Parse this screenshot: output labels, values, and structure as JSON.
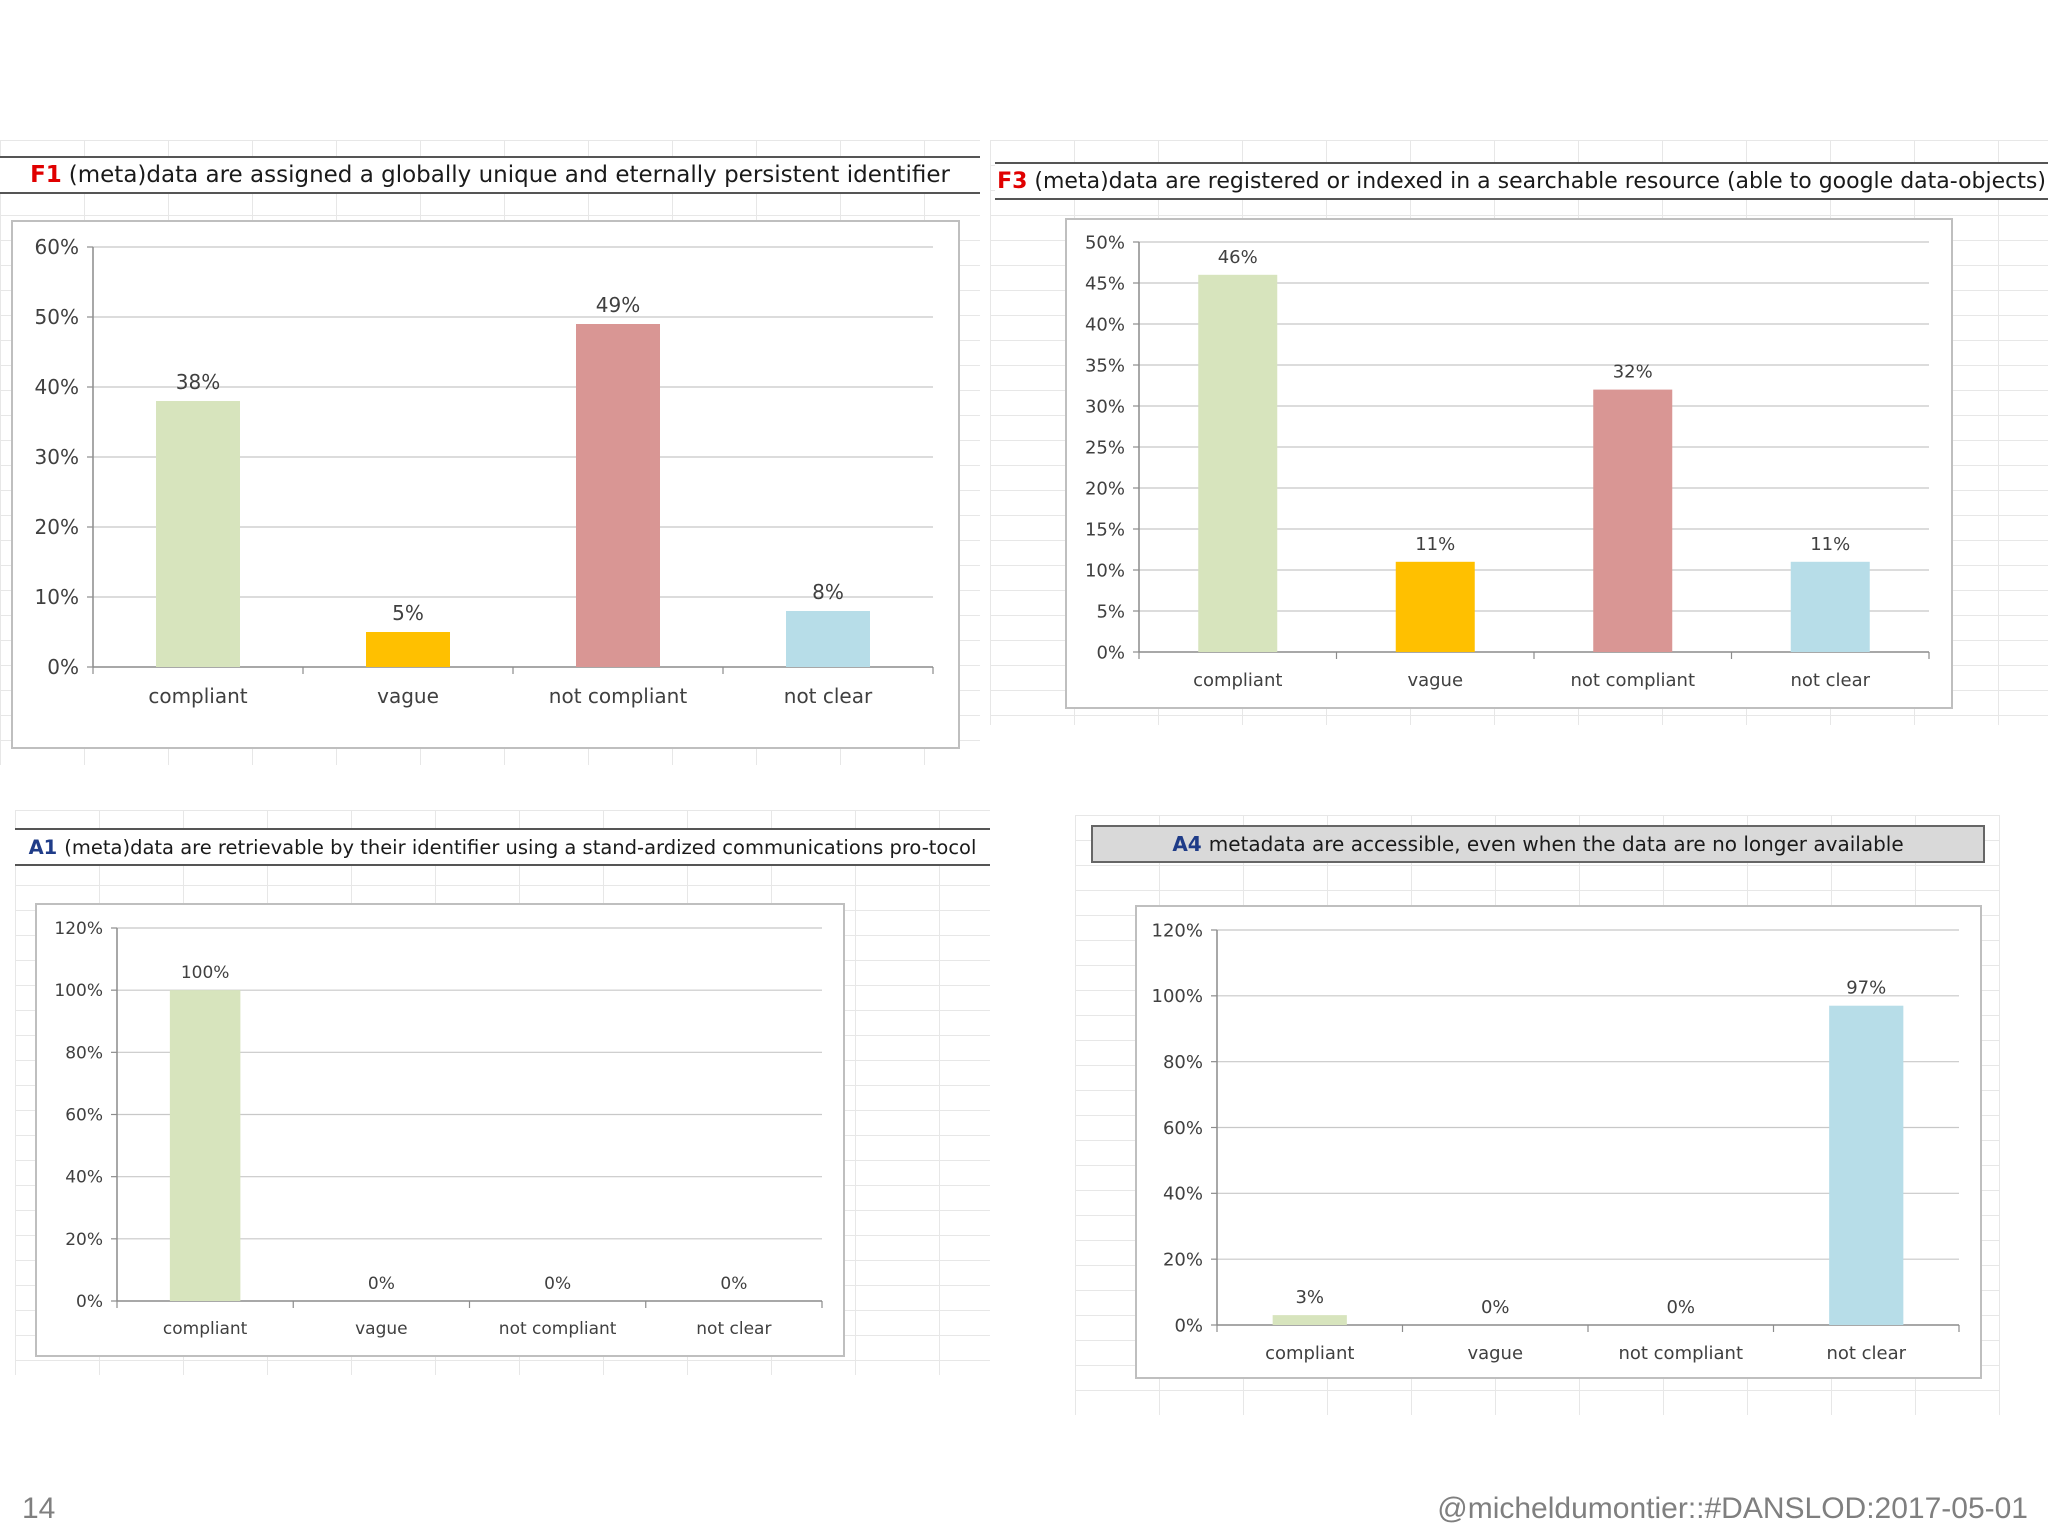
{
  "footer": {
    "page_number": "14",
    "credit": "@micheldumontier::#DANSLOD:2017-05-01"
  },
  "colors": {
    "compliant": "#d7e4bd",
    "vague": "#ffc000",
    "not_compliant": "#d99694",
    "not_clear": "#b7dde8",
    "code_red": "#e00000",
    "code_blue": "#1f3c88"
  },
  "chart_data": [
    {
      "id": "f1",
      "type": "bar",
      "title_code": "F1",
      "title": "(meta)data are assigned a globally unique and eternally persistent identifier",
      "categories": [
        "compliant",
        "vague",
        "not compliant",
        "not clear"
      ],
      "values": [
        38,
        5,
        49,
        8
      ],
      "value_labels": [
        "38%",
        "5%",
        "49%",
        "8%"
      ],
      "yticks": [
        "0%",
        "10%",
        "20%",
        "30%",
        "40%",
        "50%",
        "60%"
      ],
      "ylim": [
        0,
        60
      ],
      "grid": true,
      "legend": "none"
    },
    {
      "id": "f3",
      "type": "bar",
      "title_code": "F3",
      "title": "(meta)data are registered or indexed in a searchable resource (able to google data-objects)",
      "categories": [
        "compliant",
        "vague",
        "not compliant",
        "not clear"
      ],
      "values": [
        46,
        11,
        32,
        11
      ],
      "value_labels": [
        "46%",
        "11%",
        "32%",
        "11%"
      ],
      "yticks": [
        "0%",
        "5%",
        "10%",
        "15%",
        "20%",
        "25%",
        "30%",
        "35%",
        "40%",
        "45%",
        "50%"
      ],
      "ylim": [
        0,
        50
      ],
      "grid": true,
      "legend": "none"
    },
    {
      "id": "a1",
      "type": "bar",
      "title_code": "A1",
      "title": "(meta)data are retrievable by their identifier using a stand-ardized communications pro-tocol",
      "categories": [
        "compliant",
        "vague",
        "not compliant",
        "not clear"
      ],
      "values": [
        100,
        0,
        0,
        0
      ],
      "value_labels": [
        "100%",
        "0%",
        "0%",
        "0%"
      ],
      "yticks": [
        "0%",
        "20%",
        "40%",
        "60%",
        "80%",
        "100%",
        "120%"
      ],
      "ylim": [
        0,
        120
      ],
      "grid": true,
      "legend": "none"
    },
    {
      "id": "a4",
      "type": "bar",
      "title_code": "A4",
      "title": "metadata are accessible, even when the data are no longer available",
      "categories": [
        "compliant",
        "vague",
        "not compliant",
        "not clear"
      ],
      "values": [
        3,
        0,
        0,
        97
      ],
      "value_labels": [
        "3%",
        "0%",
        "0%",
        "97%"
      ],
      "yticks": [
        "0%",
        "20%",
        "40%",
        "60%",
        "80%",
        "100%",
        "120%"
      ],
      "ylim": [
        0,
        120
      ],
      "grid": true,
      "legend": "none"
    }
  ]
}
